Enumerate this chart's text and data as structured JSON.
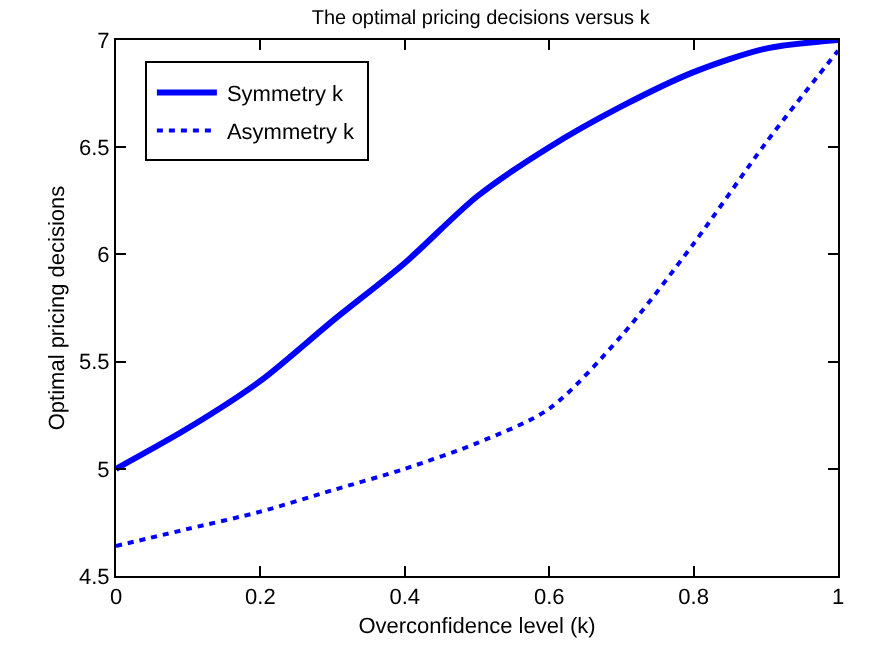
{
  "chart_data": {
    "type": "line",
    "title": "The optimal pricing decisions versus k",
    "xlabel": "Overconfidence level (k)",
    "ylabel": "Optimal pricing decisions",
    "x": [
      0,
      0.1,
      0.2,
      0.3,
      0.4,
      0.5,
      0.6,
      0.7,
      0.8,
      0.9,
      1
    ],
    "series": [
      {
        "name": "Symmetry k",
        "color": "#0000ff",
        "line_style": "solid",
        "values": [
          5.0,
          5.19,
          5.41,
          5.69,
          5.96,
          6.27,
          6.5,
          6.69,
          6.85,
          6.96,
          7.0
        ]
      },
      {
        "name": "Asymmetry k",
        "color": "#0000ff",
        "line_style": "dotted",
        "values": [
          4.64,
          4.72,
          4.8,
          4.9,
          5.0,
          5.12,
          5.28,
          5.62,
          6.05,
          6.52,
          6.95
        ]
      }
    ],
    "xlim": [
      0,
      1
    ],
    "xticks": [
      0,
      0.2,
      0.4,
      0.6,
      0.8,
      1
    ],
    "ylim": [
      4.5,
      7
    ],
    "yticks": [
      4.5,
      5,
      5.5,
      6,
      6.5,
      7
    ],
    "grid": false,
    "legend": "top left",
    "marker": "none"
  }
}
